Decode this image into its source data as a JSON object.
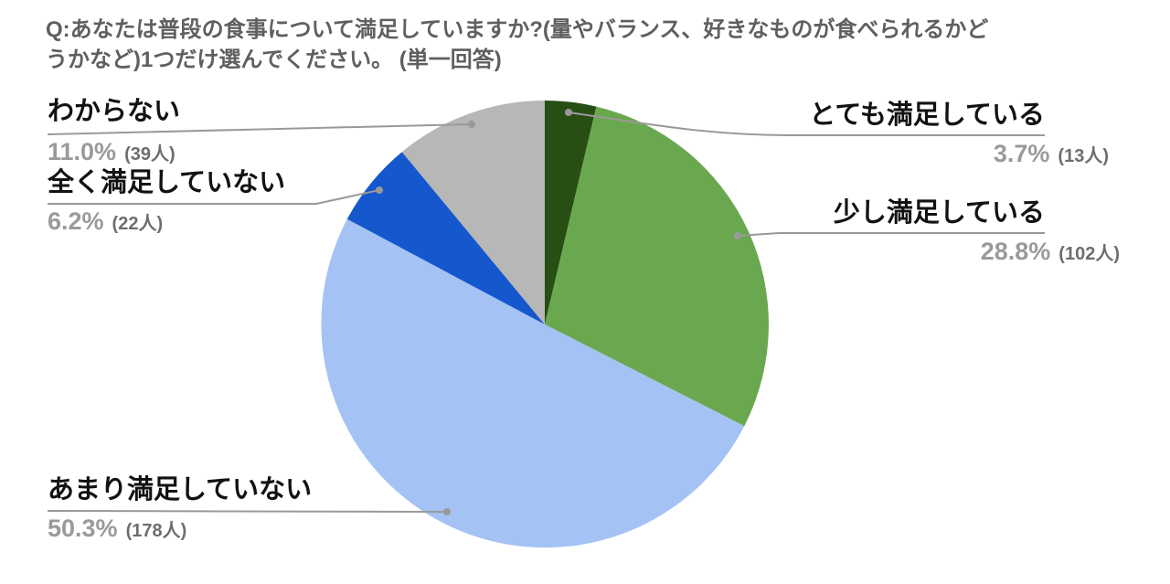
{
  "title": {
    "line1": "Q:あなたは普段の食事について満足していますか?(量やバランス、好きなものが食べられるかど",
    "line2": "うかなど)1つだけ選んでください。 (単一回答)"
  },
  "chart_data": {
    "type": "pie",
    "title": "Q:あなたは普段の食事について満足していますか?(量やバランス、好きなものが食べられるかどうかなど)1つだけ選んでください。 (単一回答)",
    "unit": "人",
    "start_angle_deg": 0,
    "direction": "clockwise",
    "legend_position": "none",
    "label_style": "external-callouts-with-leader-lines",
    "slices": [
      {
        "label": "とても満足している",
        "percent": 3.7,
        "count": 13,
        "percent_label": "3.7%",
        "count_label": "(13人)",
        "color": "#274e13"
      },
      {
        "label": "少し満足している",
        "percent": 28.8,
        "count": 102,
        "percent_label": "28.8%",
        "count_label": "(102人)",
        "color": "#6aa84f"
      },
      {
        "label": "あまり満足していない",
        "percent": 50.3,
        "count": 178,
        "percent_label": "50.3%",
        "count_label": "(178人)",
        "color": "#a4c2f4"
      },
      {
        "label": "全く満足していない",
        "percent": 6.2,
        "count": 22,
        "percent_label": "6.2%",
        "count_label": "(22人)",
        "color": "#1557cd"
      },
      {
        "label": "わからない",
        "percent": 11.0,
        "count": 39,
        "percent_label": "11.0%",
        "count_label": "(39人)",
        "color": "#b7b7b7"
      }
    ],
    "colors": {
      "leader_line": "#999999",
      "label_text": "#121212",
      "percent_text": "#9a9a9a",
      "count_text": "#6e6e6e",
      "title_text": "#5f5f61"
    }
  }
}
